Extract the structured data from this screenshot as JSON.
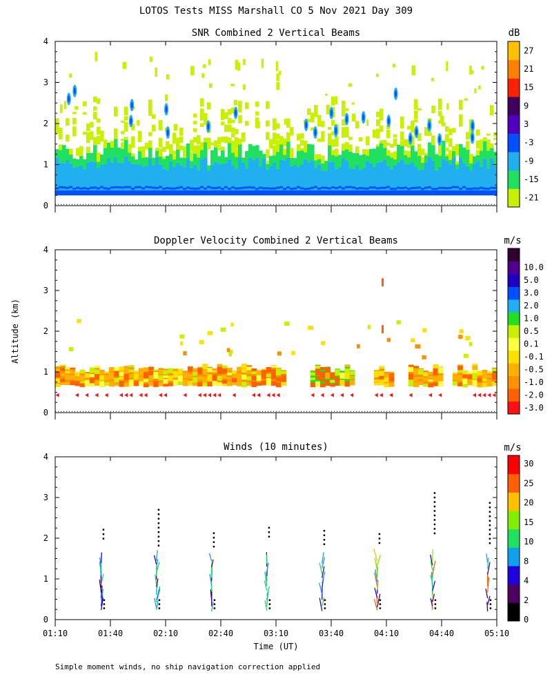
{
  "figure": {
    "title": "LOTOS Tests MISS Marshall CO   5 Nov 2021 Day 309",
    "footnote": "Simple moment winds, no ship navigation correction applied",
    "ylabel": "Altitude (km)",
    "xlabel": "Time (UT)"
  },
  "chart_data": [
    {
      "type": "heatmap",
      "title": "SNR Combined 2 Vertical Beams",
      "ylabel": "Altitude (km)",
      "ylim": [
        0,
        4
      ],
      "yticks": [
        "0",
        "1",
        "2",
        "3",
        "4"
      ],
      "xlim_minutes_ut": [
        70,
        310
      ],
      "colorbar": {
        "unit": "dB",
        "labels": [
          "-21",
          "-15",
          "-9",
          "-3",
          "3",
          "9",
          "15",
          "21",
          "27"
        ],
        "colors": [
          "#c8f000",
          "#20e060",
          "#20b0f0",
          "#0050ff",
          "#5000c0",
          "#400060",
          "#ff2000",
          "#ff8000",
          "#ffc000"
        ]
      },
      "bands": [
        {
          "alt_km": [
            0.25,
            0.4
          ],
          "value_db": 0
        },
        {
          "alt_km": [
            0.4,
            0.9
          ],
          "value_db": -9
        },
        {
          "alt_km": [
            0.9,
            1.2
          ],
          "value_db": -15
        },
        {
          "alt_km": [
            1.2,
            2.2
          ],
          "value_db": -21
        }
      ]
    },
    {
      "type": "heatmap",
      "title": "Doppler Velocity Combined 2 Vertical Beams",
      "ylabel": "Altitude (km)",
      "ylim": [
        0,
        4
      ],
      "yticks": [
        "0",
        "1",
        "2",
        "3",
        "4"
      ],
      "xlim_minutes_ut": [
        70,
        310
      ],
      "colorbar": {
        "unit": "m/s",
        "labels": [
          "-3.0",
          "-2.0",
          "-1.0",
          "-0.5",
          "-0.1",
          "0.1",
          "0.5",
          "1.0",
          "2.0",
          "3.0",
          "5.0",
          "10.0"
        ],
        "colors": [
          "#ff1010",
          "#ff6000",
          "#ff9000",
          "#ffb000",
          "#ffe000",
          "#ffff40",
          "#c8f000",
          "#20e020",
          "#20b0f0",
          "#0050ff",
          "#2000c0",
          "#500090",
          "#300030"
        ]
      },
      "bands": [
        {
          "alt_km": [
            0.45,
            1.2
          ],
          "value_ms": -1.0
        }
      ]
    },
    {
      "type": "scatter",
      "title": "Winds (10 minutes)",
      "ylabel": "Altitude (km)",
      "xlabel": "Time (UT)",
      "ylim": [
        0,
        4
      ],
      "yticks": [
        "0",
        "1",
        "2",
        "3",
        "4"
      ],
      "xlim_minutes_ut": [
        70,
        310
      ],
      "xticks": [
        "01:10",
        "01:40",
        "02:10",
        "02:40",
        "03:10",
        "03:40",
        "04:10",
        "04:40",
        "05:10"
      ],
      "colorbar": {
        "unit": "m/s",
        "labels": [
          "0",
          "2",
          "4",
          "8",
          "10",
          "15",
          "20",
          "25",
          "30"
        ],
        "colors": [
          "#000000",
          "#500060",
          "#2000e0",
          "#10a0f0",
          "#20e060",
          "#80f000",
          "#ffc000",
          "#ff6000",
          "#ff0000"
        ]
      },
      "profile_times_minutes_ut": [
        95,
        125,
        155,
        185,
        215,
        245,
        275,
        305
      ]
    }
  ]
}
